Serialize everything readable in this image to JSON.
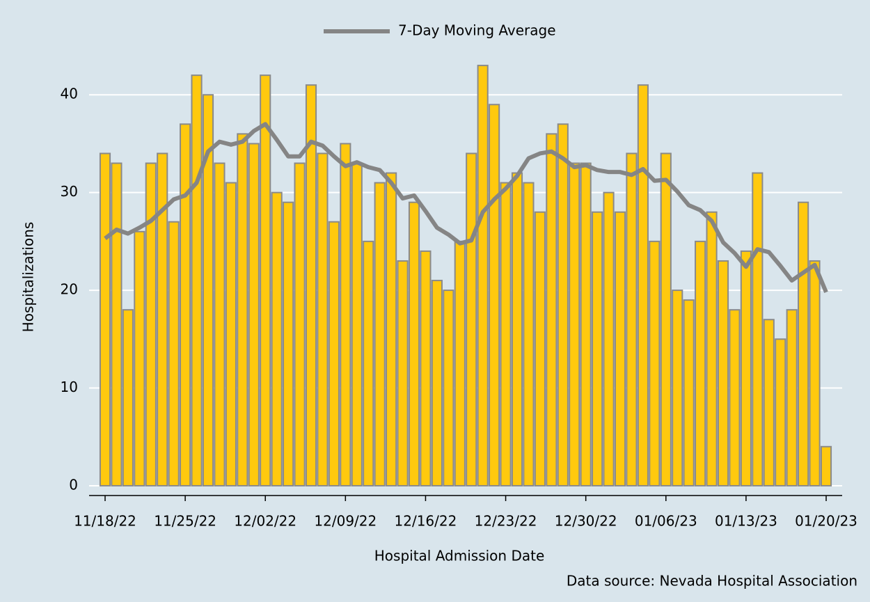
{
  "chart_data": {
    "type": "bar",
    "x": [
      "11/18/22",
      "11/19/22",
      "11/20/22",
      "11/21/22",
      "11/22/22",
      "11/23/22",
      "11/24/22",
      "11/25/22",
      "11/26/22",
      "11/27/22",
      "11/28/22",
      "11/29/22",
      "11/30/22",
      "12/01/22",
      "12/02/22",
      "12/03/22",
      "12/04/22",
      "12/05/22",
      "12/06/22",
      "12/07/22",
      "12/08/22",
      "12/09/22",
      "12/10/22",
      "12/11/22",
      "12/12/22",
      "12/13/22",
      "12/14/22",
      "12/15/22",
      "12/16/22",
      "12/17/22",
      "12/18/22",
      "12/19/22",
      "12/20/22",
      "12/21/22",
      "12/22/22",
      "12/23/22",
      "12/24/22",
      "12/25/22",
      "12/26/22",
      "12/27/22",
      "12/28/22",
      "12/29/22",
      "12/30/22",
      "12/31/22",
      "01/01/23",
      "01/02/23",
      "01/03/23",
      "01/04/23",
      "01/05/23",
      "01/06/23",
      "01/07/23",
      "01/08/23",
      "01/09/23",
      "01/10/23",
      "01/11/23",
      "01/12/23",
      "01/13/23",
      "01/14/23",
      "01/15/23",
      "01/16/23",
      "01/17/23",
      "01/18/23",
      "01/19/23",
      "01/20/23"
    ],
    "values": [
      34,
      33,
      18,
      26,
      33,
      34,
      27,
      37,
      42,
      40,
      33,
      31,
      36,
      35,
      42,
      30,
      29,
      33,
      41,
      34,
      27,
      35,
      33,
      25,
      31,
      32,
      23,
      29,
      24,
      21,
      20,
      25,
      34,
      43,
      39,
      31,
      32,
      31,
      28,
      36,
      37,
      33,
      33,
      28,
      30,
      28,
      34,
      41,
      25,
      34,
      20,
      19,
      25,
      28,
      23,
      18,
      24,
      32,
      17,
      15,
      18,
      29,
      23,
      4
    ],
    "color": "#ffc90e",
    "line": {
      "name": "7-Day Moving Average",
      "color": "#858585",
      "values": [
        25.3,
        26.2,
        25.8,
        26.4,
        27.1,
        28.2,
        29.3,
        29.7,
        31,
        34.2,
        35.2,
        34.9,
        35.2,
        36.3,
        37,
        35.4,
        33.7,
        33.7,
        35.2,
        34.8,
        33.7,
        32.7,
        33.1,
        32.6,
        32.3,
        31,
        29.4,
        29.7,
        28.1,
        26.4,
        25.7,
        24.8,
        25.1,
        28,
        29.3,
        30.4,
        31.7,
        33.5,
        34,
        34.2,
        33.5,
        32.6,
        32.8,
        32.3,
        32.1,
        32.1,
        31.8,
        32.4,
        31.2,
        31.3,
        30.1,
        28.7,
        28.2,
        27.1,
        24.9,
        23.8,
        22.4,
        24.2,
        23.9,
        22.5,
        21,
        21.8,
        22.6,
        19.8
      ]
    },
    "xticks": [
      "11/18/22",
      "11/25/22",
      "12/02/22",
      "12/09/22",
      "12/16/22",
      "12/23/22",
      "12/30/22",
      "01/06/23",
      "01/13/23",
      "01/20/23"
    ],
    "ylim": [
      -1,
      45
    ],
    "yticks": [
      0,
      10,
      20,
      30,
      40
    ],
    "grid": true,
    "xlabel": "Hospital Admission Date",
    "ylabel": "Hospitalizations",
    "source": "Data source: Nevada Hospital Association"
  }
}
